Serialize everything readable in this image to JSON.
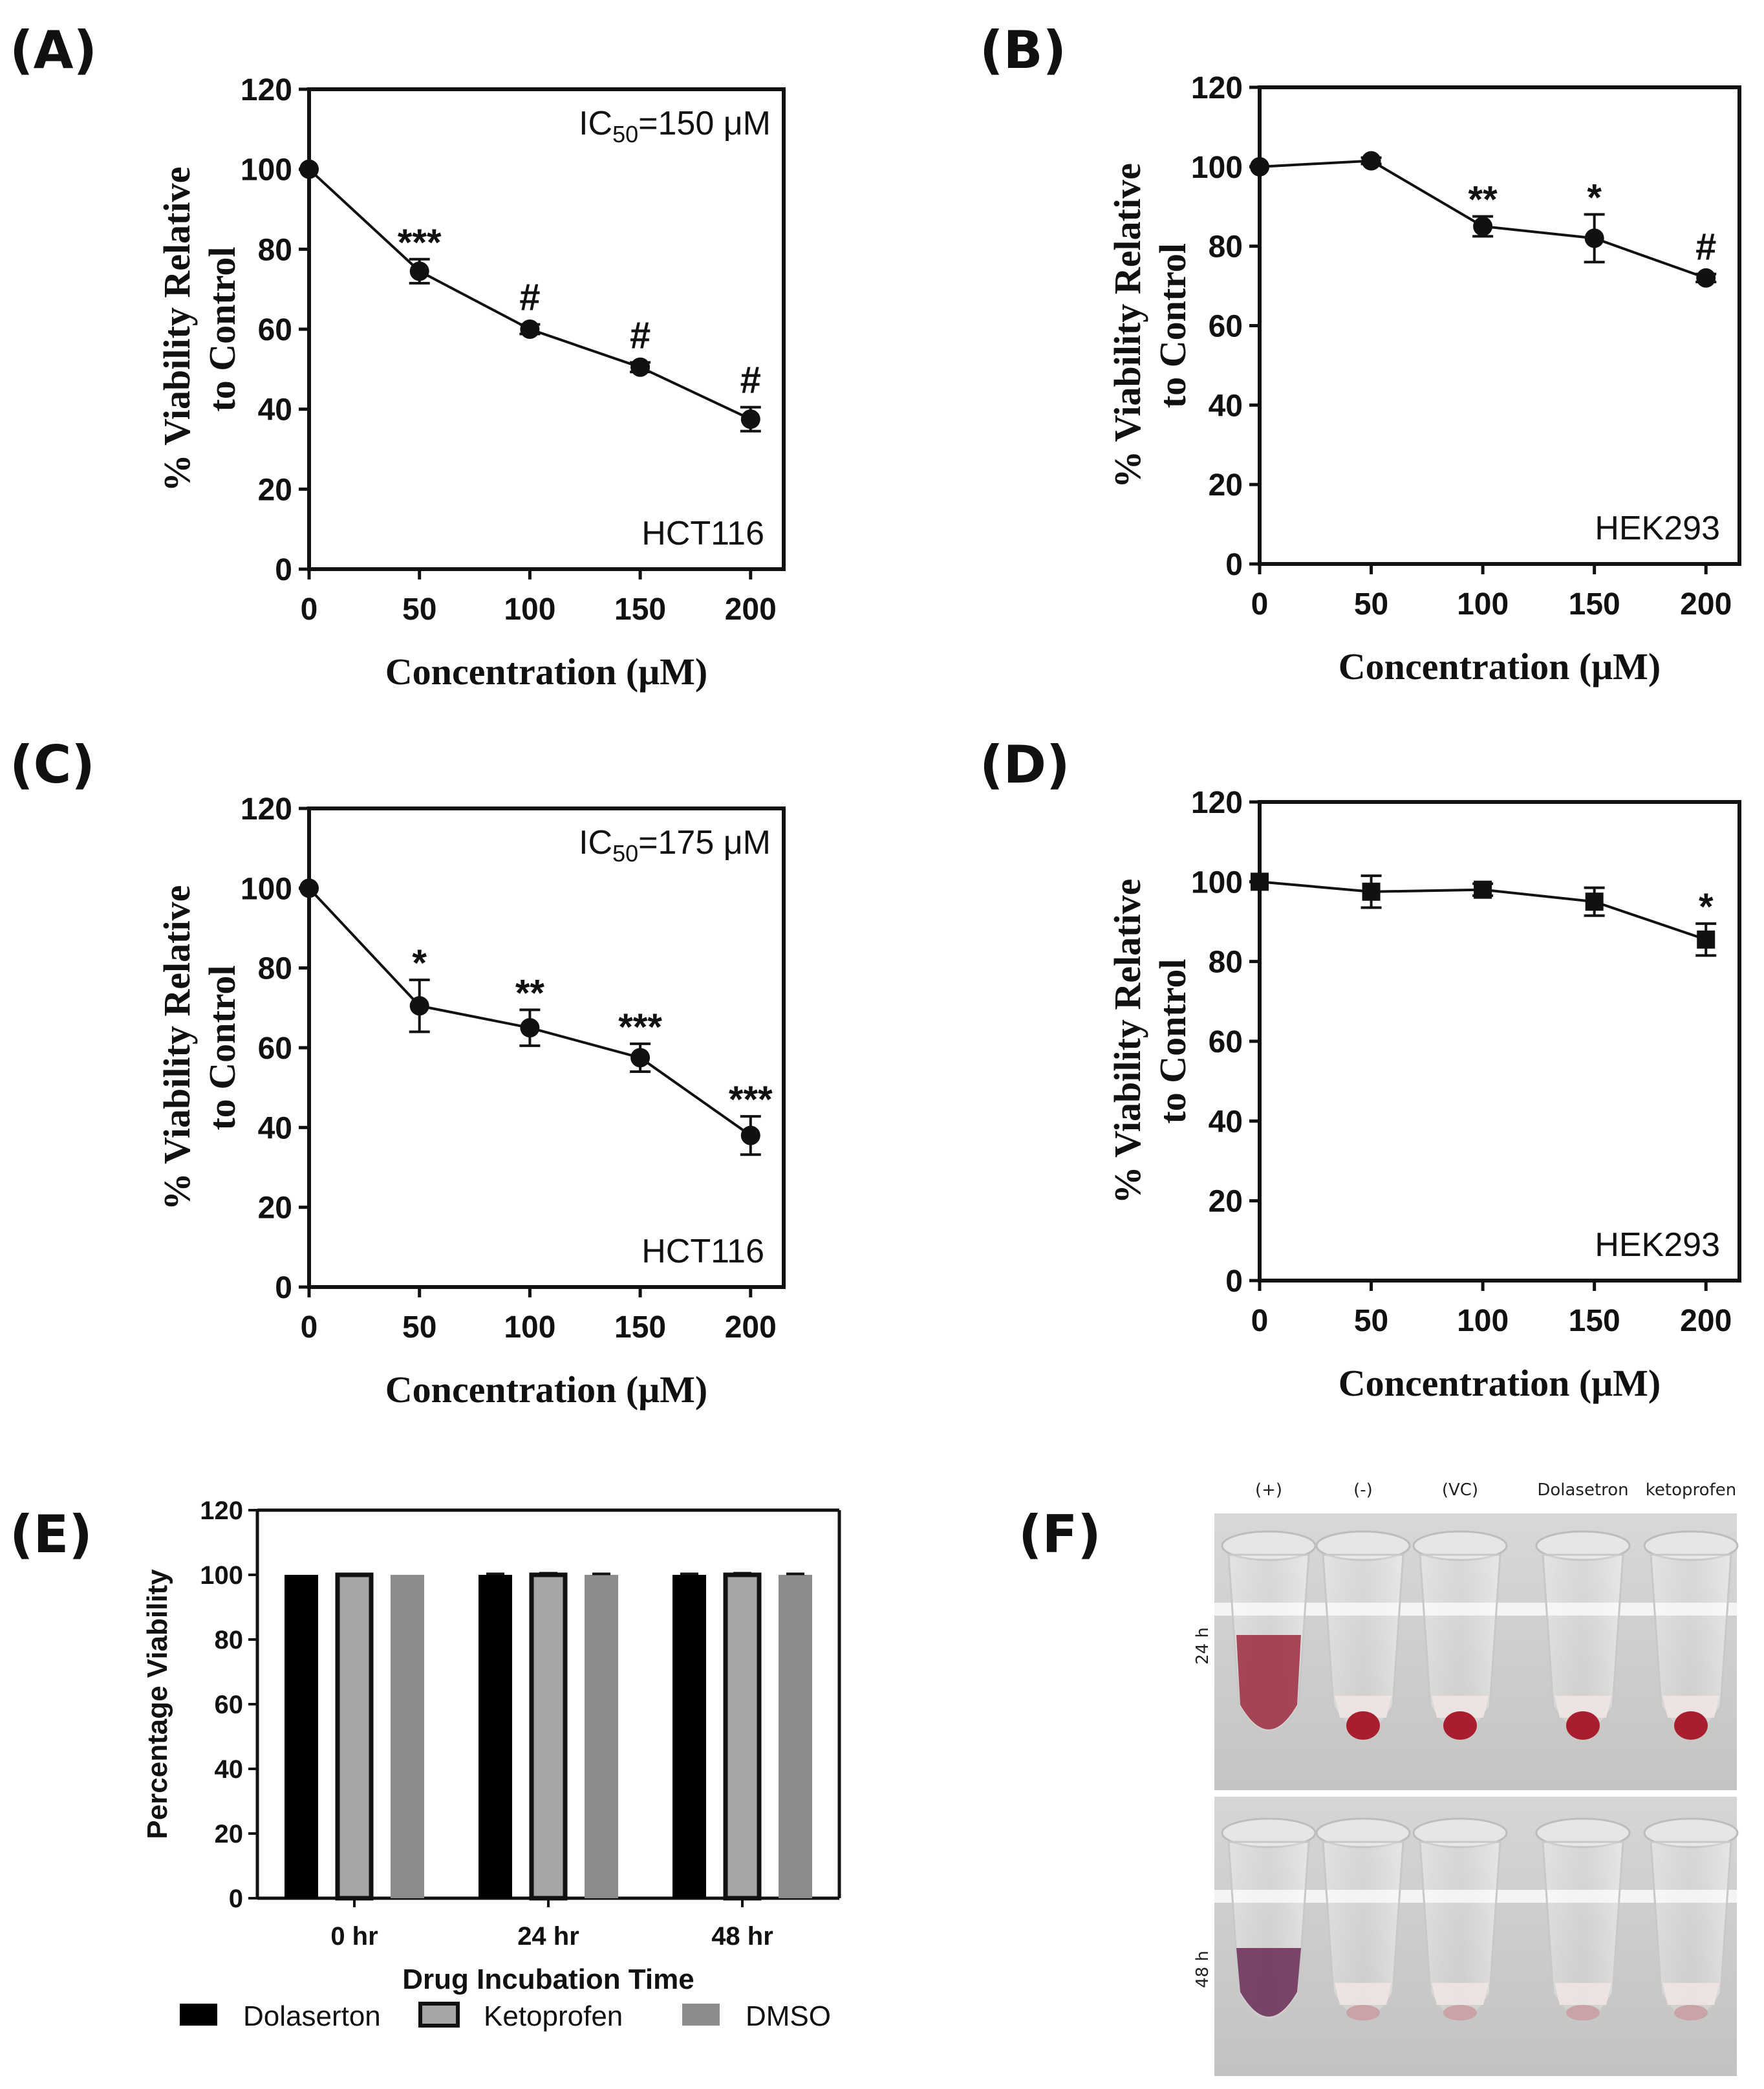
{
  "panels": {
    "A": {
      "label": "(A)"
    },
    "B": {
      "label": "(B)"
    },
    "C": {
      "label": "(C)"
    },
    "D": {
      "label": "(D)"
    },
    "E": {
      "label": "(E)"
    },
    "F": {
      "label": "(F)"
    }
  },
  "chart_data": [
    {
      "id": "A",
      "type": "line",
      "marker": "circle",
      "x": [
        0,
        50,
        100,
        150,
        200
      ],
      "y": [
        100,
        74.5,
        60,
        50.5,
        37.5
      ],
      "err": [
        0,
        3,
        1.2,
        1.2,
        3
      ],
      "sig": [
        "",
        "***",
        "#",
        "#",
        "#"
      ],
      "xlabel": "Concentration (μM)",
      "ylabel_line1": "% Viability Relative",
      "ylabel_line2": "to Control",
      "x_ticks": [
        "0",
        "50",
        "100",
        "150",
        "200"
      ],
      "y_ticks": [
        "0",
        "20",
        "40",
        "60",
        "80",
        "100",
        "120"
      ],
      "xlim": [
        0,
        215
      ],
      "ylim": [
        0,
        120
      ],
      "ic50_prefix": "IC",
      "ic50_sub": "50",
      "ic50_value": "=150 μM",
      "cell_line": "HCT116"
    },
    {
      "id": "B",
      "type": "line",
      "marker": "circle",
      "x": [
        0,
        50,
        100,
        150,
        200
      ],
      "y": [
        100,
        101.5,
        85,
        82,
        72
      ],
      "err": [
        0,
        0.8,
        2.5,
        6,
        1
      ],
      "sig": [
        "",
        "",
        "**",
        "*",
        "#"
      ],
      "xlabel": "Concentration (μM)",
      "ylabel_line1": "% Viability Relative",
      "ylabel_line2": "to Control",
      "x_ticks": [
        "0",
        "50",
        "100",
        "150",
        "200"
      ],
      "y_ticks": [
        "0",
        "20",
        "40",
        "60",
        "80",
        "100",
        "120"
      ],
      "xlim": [
        0,
        215
      ],
      "ylim": [
        0,
        120
      ],
      "cell_line": "HEK293"
    },
    {
      "id": "C",
      "type": "line",
      "marker": "circle",
      "x": [
        0,
        50,
        100,
        150,
        200
      ],
      "y": [
        100,
        70.5,
        65,
        57.5,
        38
      ],
      "err": [
        0,
        6.5,
        4.5,
        3.5,
        4.8
      ],
      "sig": [
        "",
        "*",
        "**",
        "***",
        "***"
      ],
      "xlabel": "Concentration (μM)",
      "ylabel_line1": "% Viability Relative",
      "ylabel_line2": "to Control",
      "x_ticks": [
        "0",
        "50",
        "100",
        "150",
        "200"
      ],
      "y_ticks": [
        "0",
        "20",
        "40",
        "60",
        "80",
        "100",
        "120"
      ],
      "xlim": [
        0,
        215
      ],
      "ylim": [
        0,
        120
      ],
      "ic50_prefix": "IC",
      "ic50_sub": "50",
      "ic50_value": "=175 μM",
      "cell_line": "HCT116"
    },
    {
      "id": "D",
      "type": "line",
      "marker": "square",
      "x": [
        0,
        50,
        100,
        150,
        200
      ],
      "y": [
        100,
        97.5,
        98,
        95,
        85.5
      ],
      "err": [
        0,
        4,
        1.5,
        3.5,
        4
      ],
      "sig": [
        "",
        "",
        "",
        "",
        "*"
      ],
      "xlabel": "Concentration (μM)",
      "ylabel_line1": "% Viability Relative",
      "ylabel_line2": "to Control",
      "x_ticks": [
        "0",
        "50",
        "100",
        "150",
        "200"
      ],
      "y_ticks": [
        "0",
        "20",
        "40",
        "60",
        "80",
        "100",
        "120"
      ],
      "xlim": [
        0,
        215
      ],
      "ylim": [
        0,
        120
      ],
      "cell_line": "HEK293"
    },
    {
      "id": "E",
      "type": "bar",
      "categories": [
        "0 hr",
        "24 hr",
        "48 hr"
      ],
      "series": [
        {
          "name": "Dolaserton",
          "values": [
            100,
            100,
            100
          ],
          "err": [
            0,
            0.3,
            0.3
          ],
          "color": "#000000"
        },
        {
          "name": "Ketoprofen",
          "values": [
            100,
            100,
            100
          ],
          "err": [
            0,
            0.5,
            0.5
          ],
          "color": "#a6a6a6"
        },
        {
          "name": "DMSO",
          "values": [
            100,
            100,
            100
          ],
          "err": [
            0,
            0.3,
            0.3
          ],
          "color": "#8c8c8c"
        }
      ],
      "xlabel": "Drug Incubation Time",
      "ylabel": "Percentage Viability",
      "y_ticks": [
        "0",
        "20",
        "40",
        "60",
        "80",
        "100",
        "120"
      ],
      "ylim": [
        0,
        120
      ]
    }
  ],
  "hemolysis": {
    "column_labels": [
      "(+)",
      "(-)",
      "(VC)",
      "Dolasetron",
      "ketoprofen"
    ],
    "row_labels": [
      "24 h",
      "48 h"
    ]
  }
}
